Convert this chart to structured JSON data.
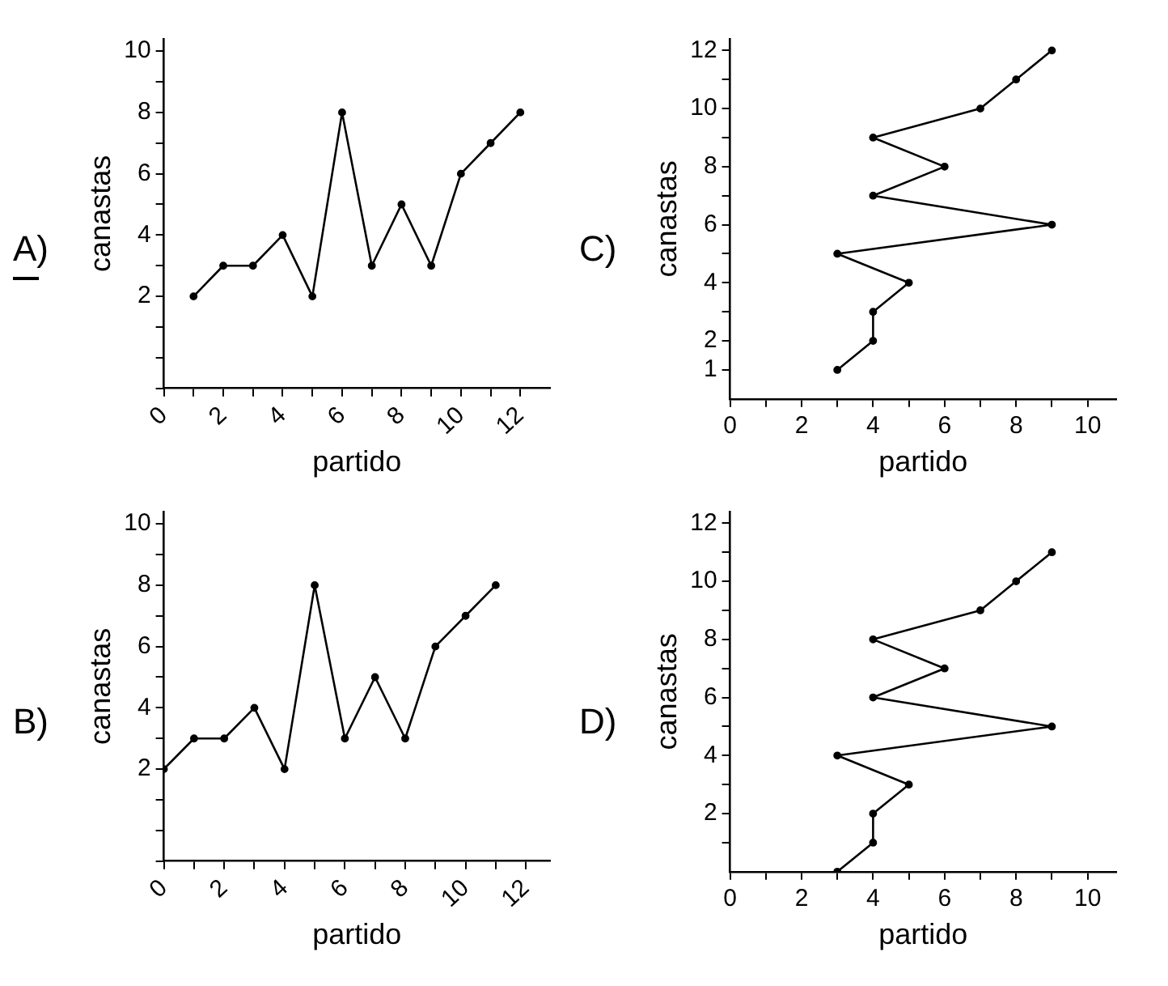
{
  "chart_data": [
    {
      "type": "line",
      "title": "A)",
      "xlabel": "partido",
      "ylabel": "canastas",
      "x": [
        1,
        2,
        3,
        4,
        5,
        6,
        7,
        8,
        9,
        10,
        11,
        12
      ],
      "series": [
        {
          "color": "#000000",
          "values": [
            2,
            3,
            3,
            4,
            2,
            8,
            3,
            5,
            3,
            6,
            7,
            8
          ]
        }
      ],
      "xlim": [
        0,
        13
      ],
      "ylim": [
        -1,
        10.4
      ],
      "xticks": [
        0,
        {
          "value": 1,
          "label": null
        },
        2,
        {
          "value": 3,
          "label": null
        },
        4,
        {
          "value": 5,
          "label": null
        },
        6,
        {
          "value": 7,
          "label": null
        },
        8,
        {
          "value": 9,
          "label": null
        },
        10,
        {
          "value": 11,
          "label": null
        },
        12
      ],
      "yticks": [
        {
          "value": -1,
          "label": null
        },
        {
          "value": 0,
          "label": null
        },
        {
          "value": 1,
          "label": null
        },
        2,
        {
          "value": 3,
          "label": null
        },
        4,
        {
          "value": 5,
          "label": null
        },
        6,
        {
          "value": 7,
          "label": null
        },
        8,
        {
          "value": 9,
          "label": null
        },
        10
      ],
      "grid": false,
      "legend": false,
      "marker": "circle",
      "line_style": "solid"
    },
    {
      "type": "line",
      "title": "C)",
      "xlabel": "partido",
      "ylabel": "canastas",
      "x": [
        3,
        4,
        4,
        5,
        3,
        9,
        4,
        6,
        4,
        7,
        8,
        9
      ],
      "series": [
        {
          "color": "#000000",
          "values": [
            1,
            2,
            3,
            4,
            5,
            6,
            7,
            8,
            9,
            10,
            11,
            12
          ]
        }
      ],
      "xlim": [
        0,
        10.8
      ],
      "ylim": [
        0,
        12.4
      ],
      "xticks": [
        0,
        {
          "value": 1,
          "label": null
        },
        2,
        {
          "value": 3,
          "label": null
        },
        4,
        {
          "value": 5,
          "label": null
        },
        6,
        {
          "value": 7,
          "label": null
        },
        8,
        {
          "value": 9,
          "label": null
        },
        10
      ],
      "yticks": [
        1,
        2,
        {
          "value": 3,
          "label": null
        },
        4,
        {
          "value": 5,
          "label": null
        },
        6,
        {
          "value": 7,
          "label": null
        },
        8,
        {
          "value": 9,
          "label": null
        },
        10,
        {
          "value": 11,
          "label": null
        },
        12
      ],
      "grid": false,
      "legend": false,
      "marker": "circle",
      "line_style": "solid"
    },
    {
      "type": "line",
      "title": "B)",
      "xlabel": "partido",
      "ylabel": "canastas",
      "x": [
        0,
        1,
        2,
        3,
        4,
        5,
        6,
        7,
        8,
        9,
        10,
        11
      ],
      "series": [
        {
          "color": "#000000",
          "values": [
            2,
            3,
            3,
            4,
            2,
            8,
            3,
            5,
            3,
            6,
            7,
            8
          ]
        }
      ],
      "xlim": [
        0,
        12.8
      ],
      "ylim": [
        -1,
        10.4
      ],
      "xticks": [
        0,
        {
          "value": 1,
          "label": null
        },
        2,
        {
          "value": 3,
          "label": null
        },
        4,
        {
          "value": 5,
          "label": null
        },
        6,
        {
          "value": 7,
          "label": null
        },
        8,
        {
          "value": 9,
          "label": null
        },
        10,
        {
          "value": 11,
          "label": null
        },
        12
      ],
      "yticks": [
        {
          "value": -1,
          "label": null
        },
        {
          "value": 0,
          "label": null
        },
        {
          "value": 1,
          "label": null
        },
        2,
        {
          "value": 3,
          "label": null
        },
        4,
        {
          "value": 5,
          "label": null
        },
        6,
        {
          "value": 7,
          "label": null
        },
        8,
        {
          "value": 9,
          "label": null
        },
        10
      ],
      "grid": false,
      "legend": false,
      "marker": "circle",
      "line_style": "solid"
    },
    {
      "type": "line",
      "title": "D)",
      "xlabel": "partido",
      "ylabel": "canastas",
      "x": [
        3,
        4,
        4,
        5,
        3,
        9,
        4,
        6,
        4,
        7,
        8,
        9
      ],
      "series": [
        {
          "color": "#000000",
          "values": [
            0,
            1,
            2,
            3,
            4,
            5,
            6,
            7,
            8,
            9,
            10,
            11
          ]
        }
      ],
      "xlim": [
        0,
        10.8
      ],
      "ylim": [
        0,
        12.4
      ],
      "xticks": [
        0,
        {
          "value": 1,
          "label": null
        },
        2,
        {
          "value": 3,
          "label": null
        },
        4,
        {
          "value": 5,
          "label": null
        },
        6,
        {
          "value": 7,
          "label": null
        },
        8,
        {
          "value": 9,
          "label": null
        },
        10
      ],
      "yticks": [
        {
          "value": 1,
          "label": null
        },
        2,
        {
          "value": 3,
          "label": null
        },
        4,
        {
          "value": 5,
          "label": null
        },
        6,
        {
          "value": 7,
          "label": null
        },
        8,
        {
          "value": 9,
          "label": null
        },
        10,
        {
          "value": 11,
          "label": null
        },
        12
      ],
      "grid": false,
      "legend": false,
      "marker": "circle",
      "line_style": "solid"
    }
  ]
}
